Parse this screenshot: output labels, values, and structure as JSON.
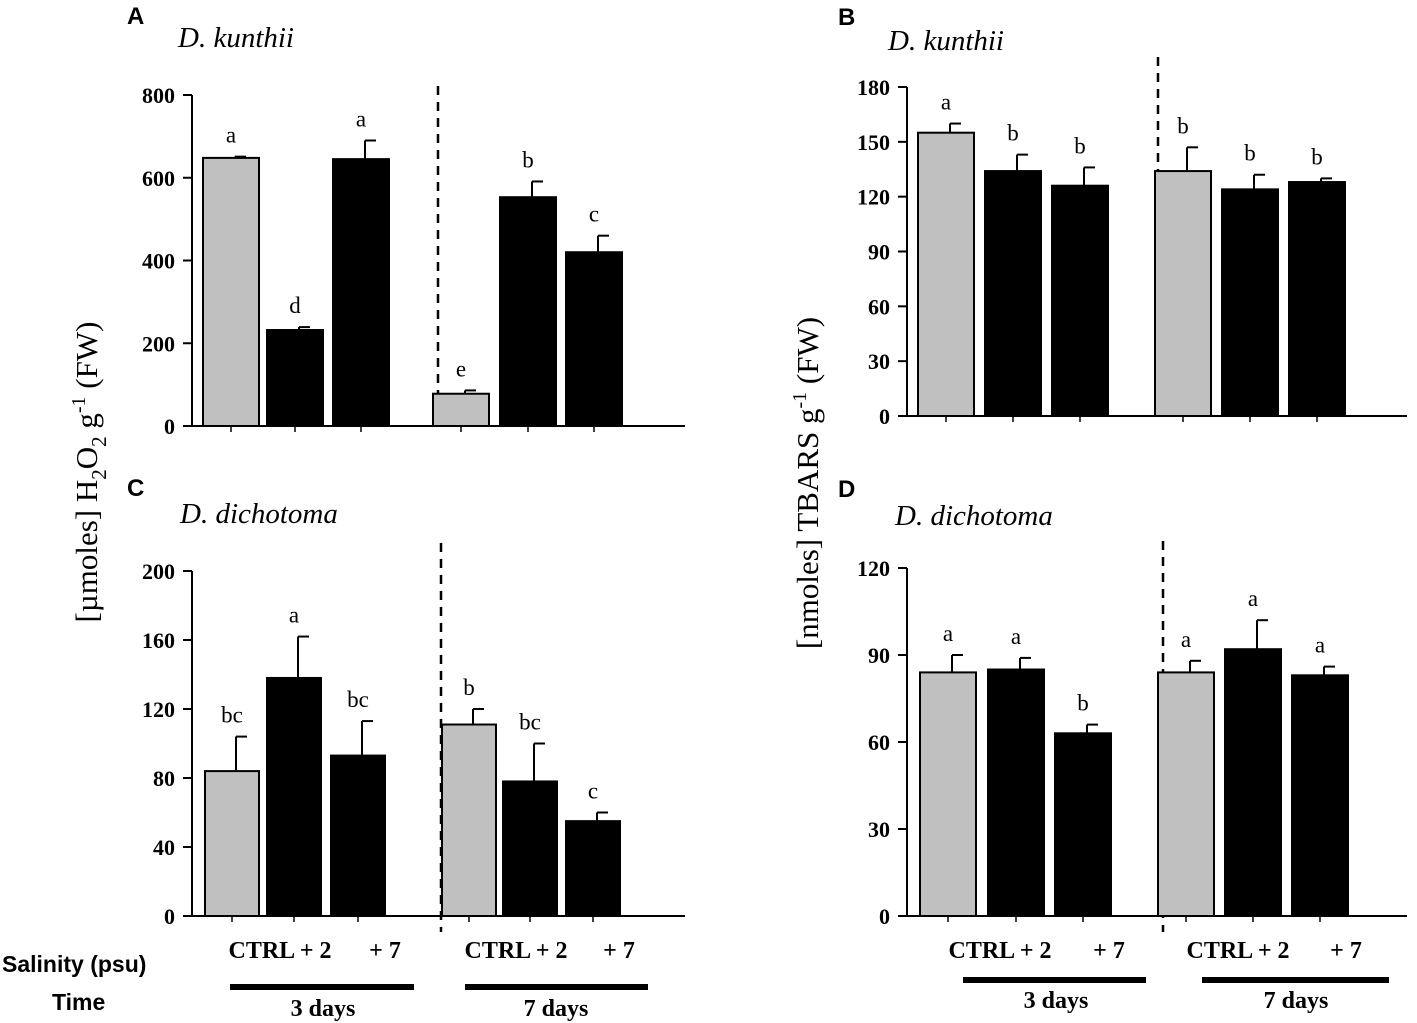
{
  "colors": {
    "ctrl": "#c0c0c0",
    "treat": "#000000",
    "axis": "#000000"
  },
  "ylabel_left": {
    "pre": "[µmoles] H",
    "s1": "2",
    "mid": "O",
    "s2": "2",
    "g": " g",
    "sup": "-1",
    "post": " (FW)"
  },
  "ylabel_right": {
    "pre": "[nmoles] TBARS g",
    "sup": "-1",
    "post": " (FW)"
  },
  "footer": {
    "salinity_label": "Salinity (psu)",
    "time_label": "Time",
    "left_tick_text": [
      "CTRL + 2",
      "+ 7",
      "CTRL + 2",
      "+ 7"
    ],
    "right_tick_text": [
      "CTRL + 2",
      "+ 7",
      "CTRL + 2",
      "+ 7"
    ],
    "time_groups": [
      "3 days",
      "7 days"
    ]
  },
  "chart_data": [
    {
      "type": "bar",
      "panel": "A",
      "title": "D. kunthii",
      "categories": [
        "CTRL",
        "+ 2",
        "+ 7",
        "CTRL",
        "+ 2",
        "+ 7"
      ],
      "groups": [
        "3 days",
        "3 days",
        "3 days",
        "7 days",
        "7 days",
        "7 days"
      ],
      "values": [
        648,
        232,
        645,
        78,
        553,
        420
      ],
      "errors": [
        3,
        7,
        45,
        8,
        38,
        40
      ],
      "letters": [
        "a",
        "d",
        "a",
        "e",
        "b",
        "c"
      ],
      "yticks": [
        0,
        200,
        400,
        600,
        800
      ],
      "ylim": [
        0,
        800
      ]
    },
    {
      "type": "bar",
      "panel": "B",
      "title": "D. kunthii",
      "categories": [
        "CTRL",
        "+ 2",
        "+ 7",
        "CTRL",
        "+ 2",
        "+ 7"
      ],
      "groups": [
        "3 days",
        "3 days",
        "3 days",
        "7 days",
        "7 days",
        "7 days"
      ],
      "values": [
        155,
        134,
        126,
        134,
        124,
        128
      ],
      "errors": [
        5,
        9,
        10,
        13,
        8,
        2
      ],
      "letters": [
        "a",
        "b",
        "b",
        "b",
        "b",
        "b"
      ],
      "yticks": [
        0,
        30,
        60,
        90,
        120,
        150,
        180
      ],
      "ylim": [
        0,
        180
      ]
    },
    {
      "type": "bar",
      "panel": "C",
      "title": "D. dichotoma",
      "categories": [
        "CTRL",
        "+ 2",
        "+ 7",
        "CTRL",
        "+ 2",
        "+ 7"
      ],
      "groups": [
        "3 days",
        "3 days",
        "3 days",
        "7 days",
        "7 days",
        "7 days"
      ],
      "values": [
        84,
        138,
        93,
        111,
        78,
        55
      ],
      "errors": [
        20,
        24,
        20,
        9,
        22,
        5
      ],
      "letters": [
        "bc",
        "a",
        "bc",
        "b",
        "bc",
        "c"
      ],
      "yticks": [
        0,
        40,
        80,
        120,
        160,
        200
      ],
      "ylim": [
        0,
        200
      ]
    },
    {
      "type": "bar",
      "panel": "D",
      "title": "D. dichotoma",
      "categories": [
        "CTRL",
        "+ 2",
        "+ 7",
        "CTRL",
        "+ 2",
        "+ 7"
      ],
      "groups": [
        "3 days",
        "3 days",
        "3 days",
        "7 days",
        "7 days",
        "7 days"
      ],
      "values": [
        84,
        85,
        63,
        84,
        92,
        83
      ],
      "errors": [
        6,
        4,
        3,
        4,
        10,
        3
      ],
      "letters": [
        "a",
        "a",
        "b",
        "a",
        "a",
        "a"
      ],
      "yticks": [
        0,
        30,
        60,
        90,
        120
      ],
      "ylim": [
        0,
        120
      ]
    }
  ]
}
